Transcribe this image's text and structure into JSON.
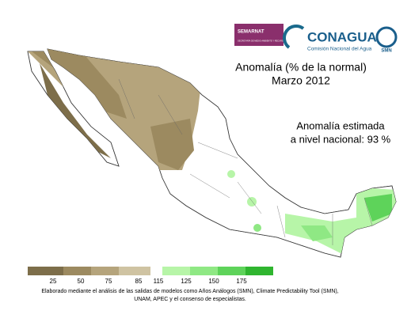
{
  "logos": {
    "semarnat": "SEMARNAT",
    "semarnat_sub": "SECRETARÍA DE MEDIO AMBIENTE Y RECURSOS NATURALES",
    "conagua": "CONAGUA",
    "conagua_sub": "Comisión Nacional del Agua",
    "smn": "SMN"
  },
  "title": "Anomalía (% de la normal)",
  "subtitle": "Marzo 2012",
  "annotation": [
    "Anomalía estimada",
    "a nivel nacional: 93 %"
  ],
  "legend": {
    "colors": [
      "#7d6e4a",
      "#9c8a60",
      "#b5a47c",
      "#cfc3a2",
      "#ffffff",
      "#b7f5a8",
      "#8fe884",
      "#5ed35a",
      "#2fb52f"
    ],
    "labels": [
      25,
      50,
      75,
      85,
      115,
      125,
      150,
      175
    ]
  },
  "footnote": [
    "Elaborado mediante el análisis de las salidas de modelos como Años Análogos (SMN), Climate Predictability Tool (SMN),",
    "UNAM, APEC y el consenso de especialistas."
  ]
}
